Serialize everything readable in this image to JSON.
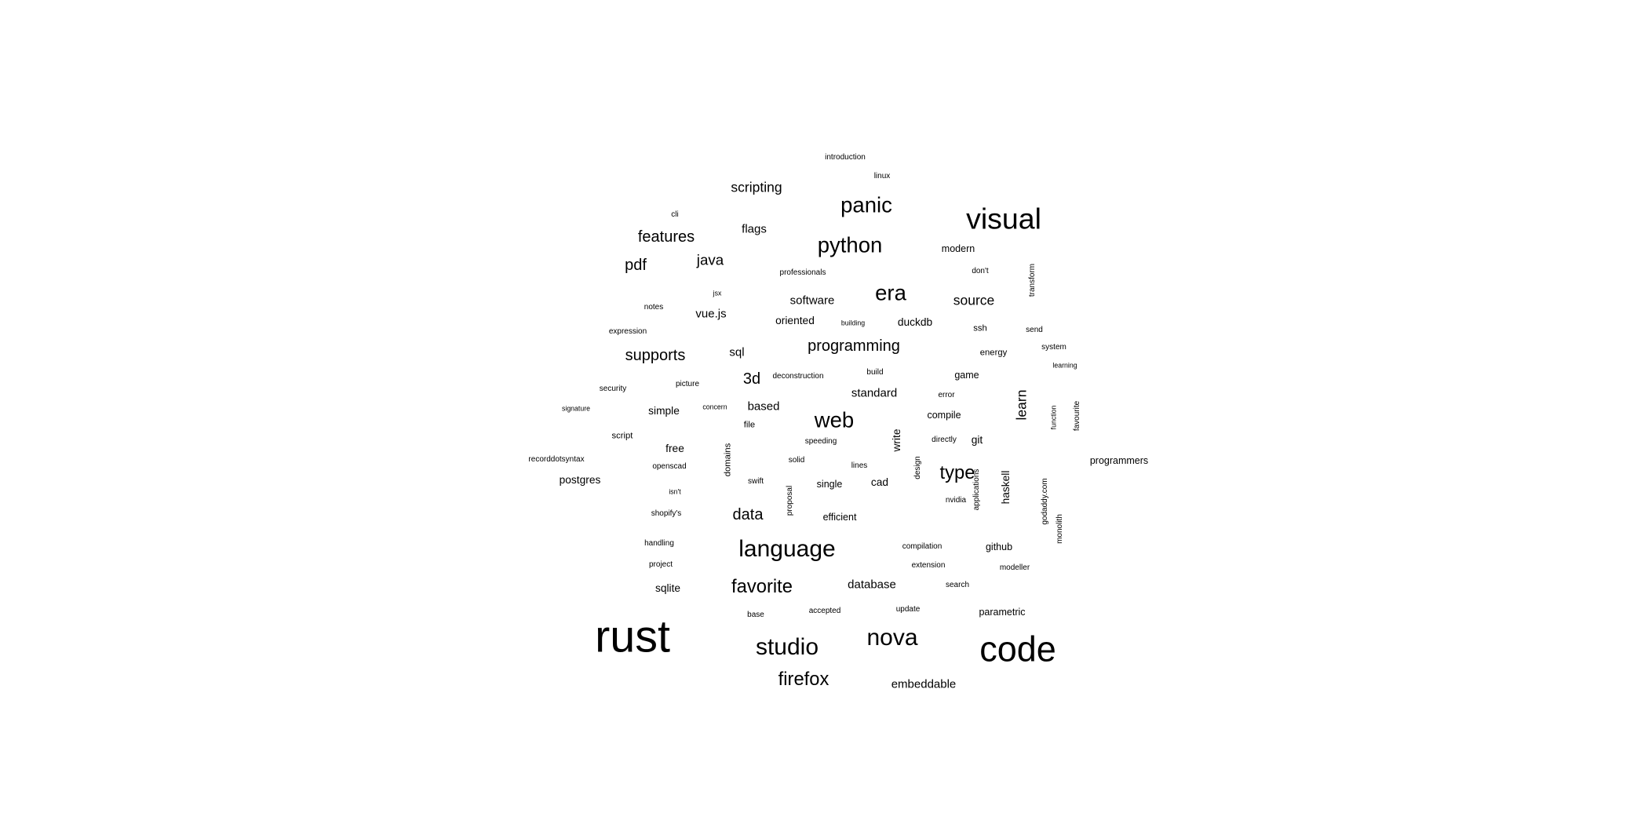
{
  "cloud": {
    "words": [
      {
        "text": "rust",
        "weight": 46
      },
      {
        "text": "code",
        "weight": 36
      },
      {
        "text": "visual",
        "weight": 30
      },
      {
        "text": "nova",
        "weight": 24
      },
      {
        "text": "studio",
        "weight": 24
      },
      {
        "text": "language",
        "weight": 24
      },
      {
        "text": "panic",
        "weight": 22
      },
      {
        "text": "era",
        "weight": 22
      },
      {
        "text": "python",
        "weight": 22
      },
      {
        "text": "web",
        "weight": 22
      },
      {
        "text": "favorite",
        "weight": 19
      },
      {
        "text": "firefox",
        "weight": 19
      },
      {
        "text": "type",
        "weight": 19
      },
      {
        "text": "programming",
        "weight": 16
      },
      {
        "text": "supports",
        "weight": 16
      },
      {
        "text": "features",
        "weight": 16
      },
      {
        "text": "3d",
        "weight": 16
      },
      {
        "text": "pdf",
        "weight": 16
      },
      {
        "text": "data",
        "weight": 16
      },
      {
        "text": "java",
        "weight": 15
      },
      {
        "text": "scripting",
        "weight": 14
      },
      {
        "text": "learn",
        "weight": 14
      },
      {
        "text": "source",
        "weight": 14
      },
      {
        "text": "software",
        "weight": 12
      },
      {
        "text": "standard",
        "weight": 12
      },
      {
        "text": "database",
        "weight": 12
      },
      {
        "text": "embeddable",
        "weight": 12
      },
      {
        "text": "based",
        "weight": 12
      },
      {
        "text": "flags",
        "weight": 12
      },
      {
        "text": "sql",
        "weight": 12
      },
      {
        "text": "vue.js",
        "weight": 12
      },
      {
        "text": "oriented",
        "weight": 11
      },
      {
        "text": "duckdb",
        "weight": 11
      },
      {
        "text": "haskell",
        "weight": 11
      },
      {
        "text": "write",
        "weight": 11
      },
      {
        "text": "simple",
        "weight": 11
      },
      {
        "text": "postgres",
        "weight": 11
      },
      {
        "text": "free",
        "weight": 11
      },
      {
        "text": "git",
        "weight": 11
      },
      {
        "text": "sqlite",
        "weight": 11
      },
      {
        "text": "cad",
        "weight": 11
      },
      {
        "text": "efficient",
        "weight": 10
      },
      {
        "text": "github",
        "weight": 10
      },
      {
        "text": "parametric",
        "weight": 10
      },
      {
        "text": "programmers",
        "weight": 10
      },
      {
        "text": "single",
        "weight": 10
      },
      {
        "text": "modern",
        "weight": 10
      },
      {
        "text": "game",
        "weight": 10
      },
      {
        "text": "compile",
        "weight": 10
      },
      {
        "text": "domains",
        "weight": 9
      },
      {
        "text": "energy",
        "weight": 9
      },
      {
        "text": "script",
        "weight": 9
      },
      {
        "text": "file",
        "weight": 9
      },
      {
        "text": "ssh",
        "weight": 9
      },
      {
        "text": "nvidia",
        "weight": 8
      },
      {
        "text": "linux",
        "weight": 8
      },
      {
        "text": "search",
        "weight": 8
      },
      {
        "text": "accepted",
        "weight": 8
      },
      {
        "text": "update",
        "weight": 8
      },
      {
        "text": "expression",
        "weight": 8
      },
      {
        "text": "notes",
        "weight": 8
      },
      {
        "text": "picture",
        "weight": 8
      },
      {
        "text": "security",
        "weight": 8
      },
      {
        "text": "recorddotsyntax",
        "weight": 8
      },
      {
        "text": "openscad",
        "weight": 8
      },
      {
        "text": "shopify's",
        "weight": 8
      },
      {
        "text": "handling",
        "weight": 8
      },
      {
        "text": "project",
        "weight": 8
      },
      {
        "text": "base",
        "weight": 8
      },
      {
        "text": "compilation",
        "weight": 8
      },
      {
        "text": "extension",
        "weight": 8
      },
      {
        "text": "modeller",
        "weight": 8
      },
      {
        "text": "applications",
        "weight": 8
      },
      {
        "text": "introduction",
        "weight": 8
      },
      {
        "text": "professionals",
        "weight": 8
      },
      {
        "text": "build",
        "weight": 8
      },
      {
        "text": "deconstruction",
        "weight": 8
      },
      {
        "text": "speeding",
        "weight": 8
      },
      {
        "text": "solid",
        "weight": 8
      },
      {
        "text": "lines",
        "weight": 8
      },
      {
        "text": "swift",
        "weight": 8
      },
      {
        "text": "error",
        "weight": 8
      },
      {
        "text": "directly",
        "weight": 8
      },
      {
        "text": "don't",
        "weight": 8
      },
      {
        "text": "send",
        "weight": 8
      },
      {
        "text": "system",
        "weight": 8
      },
      {
        "text": "favourite",
        "weight": 8
      },
      {
        "text": "godaddy.com",
        "weight": 8
      },
      {
        "text": "monolith",
        "weight": 8
      },
      {
        "text": "transform",
        "weight": 8
      },
      {
        "text": "design",
        "weight": 8
      },
      {
        "text": "proposal",
        "weight": 8
      },
      {
        "text": "cli",
        "weight": 8
      },
      {
        "text": "concern",
        "weight": 7
      },
      {
        "text": "signature",
        "weight": 7
      },
      {
        "text": "jsx",
        "weight": 7
      },
      {
        "text": "building",
        "weight": 7
      },
      {
        "text": "learning",
        "weight": 7
      },
      {
        "text": "function",
        "weight": 7
      },
      {
        "text": "isn't",
        "weight": 7
      }
    ]
  }
}
